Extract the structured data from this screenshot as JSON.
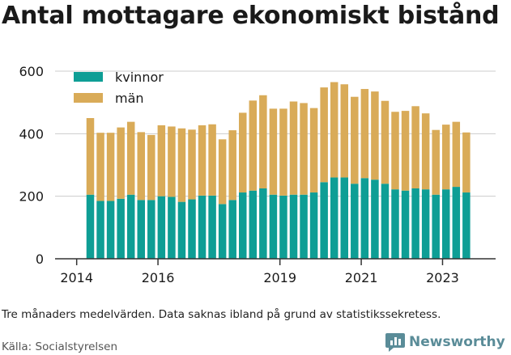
{
  "title": "Antal mottagare ekonomiskt bistånd",
  "note": "Tre månaders medelvärden. Data saknas ibland på grund av statistikssekretess.",
  "source": "Källa: Socialstyrelsen",
  "brand": {
    "name": "Newsworthy",
    "icon": "bar-chart-logo-icon"
  },
  "colors": {
    "kvinnor": "#0e9e95",
    "man": "#d9ab58",
    "axis": "#333333",
    "grid": "#cccccc"
  },
  "chart_data": {
    "type": "bar",
    "stacked": true,
    "title": "Antal mottagare ekonomiskt bistånd",
    "xlabel": "",
    "ylabel": "",
    "ylim": [
      0,
      600
    ],
    "yticks": [
      0,
      200,
      400,
      600
    ],
    "xticks": [
      "2014",
      "2016",
      "2019",
      "2021",
      "2023"
    ],
    "legend_position": "top-left",
    "grid": true,
    "categories": [
      "2014-Q2",
      "2014-Q3",
      "2014-Q4",
      "2015-Q1",
      "2015-Q2",
      "2015-Q3",
      "2015-Q4",
      "2016-Q1",
      "2016-Q2",
      "2016-Q3",
      "2016-Q4",
      "2017-Q1",
      "2017-Q2",
      "2017-Q3",
      "2017-Q4",
      "2018-Q1",
      "2018-Q2",
      "2018-Q3",
      "2018-Q4",
      "2019-Q1",
      "2019-Q2",
      "2019-Q3",
      "2019-Q4",
      "2020-Q1",
      "2020-Q2",
      "2020-Q3",
      "2020-Q4",
      "2021-Q1",
      "2021-Q2",
      "2021-Q3",
      "2021-Q4",
      "2022-Q1",
      "2022-Q2",
      "2022-Q3",
      "2022-Q4",
      "2023-Q1",
      "2023-Q2",
      "2023-Q3"
    ],
    "series": [
      {
        "name": "kvinnor",
        "values": [
          205,
          185,
          185,
          192,
          205,
          188,
          188,
          200,
          198,
          182,
          190,
          202,
          202,
          175,
          188,
          212,
          218,
          225,
          205,
          202,
          205,
          205,
          212,
          245,
          260,
          260,
          240,
          258,
          253,
          240,
          222,
          218,
          225,
          222,
          205,
          222,
          230,
          212
        ]
      },
      {
        "name": "män",
        "values": [
          245,
          218,
          218,
          228,
          233,
          217,
          208,
          227,
          225,
          235,
          223,
          225,
          228,
          207,
          223,
          255,
          288,
          298,
          275,
          278,
          298,
          293,
          270,
          303,
          305,
          298,
          278,
          285,
          282,
          265,
          248,
          255,
          263,
          243,
          207,
          207,
          208,
          192
        ]
      }
    ]
  }
}
